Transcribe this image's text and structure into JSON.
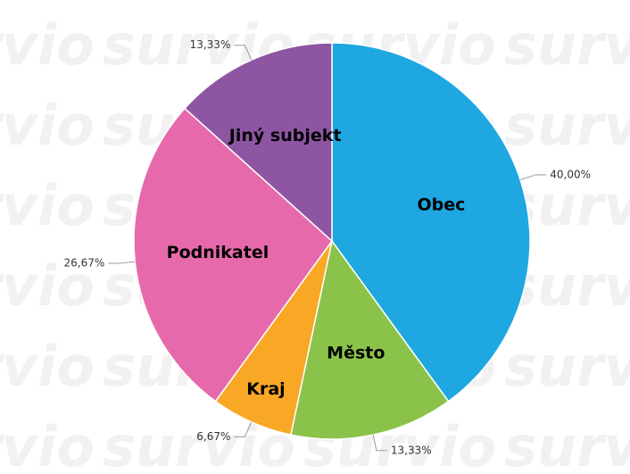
{
  "watermark": "survio",
  "chart_data": {
    "type": "pie",
    "categories": [
      "Obec",
      "Město",
      "Kraj",
      "Podnikatel",
      "Jiný subjekt"
    ],
    "values": [
      40.0,
      13.33,
      6.67,
      26.67,
      13.33
    ],
    "value_labels": [
      "40,00%",
      "13,33%",
      "6,67%",
      "26,67%",
      "13,33%"
    ],
    "colors": [
      "#1ea7e1",
      "#8bc34a",
      "#f9a825",
      "#e66aab",
      "#8e55a3"
    ]
  }
}
